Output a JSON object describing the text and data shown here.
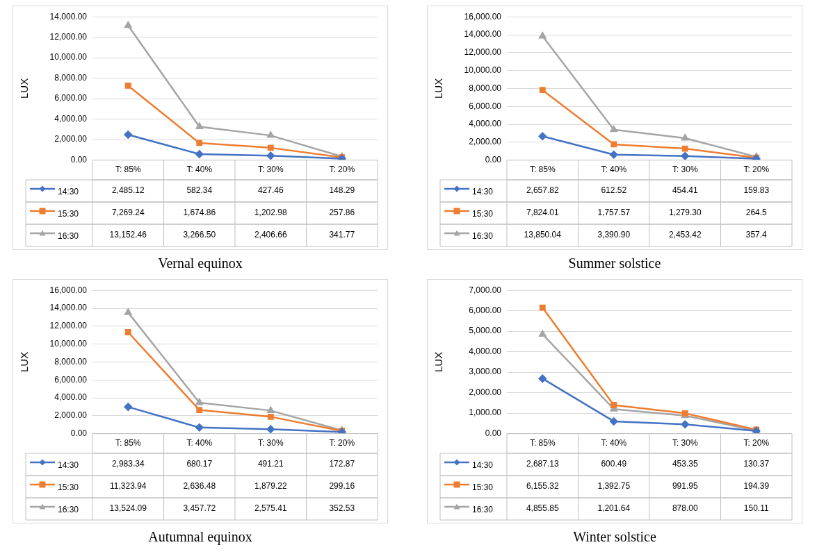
{
  "chart_data": [
    {
      "type": "line",
      "legend": "bottom left",
      "title": "Vernal equinox",
      "ylabel": "LUX",
      "categories": [
        "T: 85%",
        "T: 40%",
        "T: 30%",
        "T: 20%"
      ],
      "grid": "y",
      "ylim": [
        0,
        14000
      ],
      "yticks": [
        {
          "value": 0,
          "label": "0.00"
        },
        {
          "value": 2000,
          "label": "2,000.00"
        },
        {
          "value": 4000,
          "label": "4,000.00"
        },
        {
          "value": 6000,
          "label": "6,000.00"
        },
        {
          "value": 8000,
          "label": "8,000.00"
        },
        {
          "value": 10000,
          "label": "10,000.00"
        },
        {
          "value": 12000,
          "label": "12,000.00"
        },
        {
          "value": 14000,
          "label": "14,000.00"
        }
      ],
      "series": [
        {
          "name": "14:30",
          "color": "#4472c4",
          "marker": "diamond",
          "values": [
            2485.12,
            582.34,
            427.46,
            148.29
          ],
          "value_labels": [
            "2,485.12",
            "582.34",
            "427.46",
            "148.29"
          ]
        },
        {
          "name": "15:30",
          "color": "#ed7d31",
          "marker": "square",
          "values": [
            7269.24,
            1674.86,
            1202.98,
            257.86
          ],
          "value_labels": [
            "7,269.24",
            "1,674.86",
            "1,202.98",
            "257.86"
          ]
        },
        {
          "name": "16:30",
          "color": "#a5a5a5",
          "marker": "triangle",
          "values": [
            13152.46,
            3266.5,
            2406.66,
            341.77
          ],
          "value_labels": [
            "13,152.46",
            "3,266.50",
            "2,406.66",
            "341.77"
          ]
        }
      ]
    },
    {
      "type": "line",
      "legend": "bottom left",
      "title": "Summer solstice",
      "ylabel": "LUX",
      "categories": [
        "T: 85%",
        "T: 40%",
        "T: 30%",
        "T: 20%"
      ],
      "grid": "y",
      "ylim": [
        0,
        16000
      ],
      "yticks": [
        {
          "value": 0,
          "label": "0.00"
        },
        {
          "value": 2000,
          "label": "2,000.00"
        },
        {
          "value": 4000,
          "label": "4,000.00"
        },
        {
          "value": 6000,
          "label": "6,000.00"
        },
        {
          "value": 8000,
          "label": "8,000.00"
        },
        {
          "value": 10000,
          "label": "10,000.00"
        },
        {
          "value": 12000,
          "label": "12,000.00"
        },
        {
          "value": 14000,
          "label": "14,000.00"
        },
        {
          "value": 16000,
          "label": "16,000.00"
        }
      ],
      "series": [
        {
          "name": "14:30",
          "color": "#4472c4",
          "marker": "diamond",
          "values": [
            2657.82,
            612.52,
            454.41,
            159.83
          ],
          "value_labels": [
            "2,657.82",
            "612.52",
            "454.41",
            "159.83"
          ]
        },
        {
          "name": "15:30",
          "color": "#ed7d31",
          "marker": "square",
          "values": [
            7824.01,
            1757.57,
            1279.3,
            264.5
          ],
          "value_labels": [
            "7,824.01",
            "1,757.57",
            "1,279.30",
            "264.5"
          ]
        },
        {
          "name": "16:30",
          "color": "#a5a5a5",
          "marker": "triangle",
          "values": [
            13850.04,
            3390.9,
            2453.42,
            357.4
          ],
          "value_labels": [
            "13,850.04",
            "3,390.90",
            "2,453.42",
            "357.4"
          ]
        }
      ]
    },
    {
      "type": "line",
      "legend": "bottom left",
      "title": "Autumnal equinox",
      "ylabel": "LUX",
      "categories": [
        "T: 85%",
        "T: 40%",
        "T: 30%",
        "T: 20%"
      ],
      "grid": "y",
      "ylim": [
        0,
        16000
      ],
      "yticks": [
        {
          "value": 0,
          "label": "0.00"
        },
        {
          "value": 2000,
          "label": "2,000.00"
        },
        {
          "value": 4000,
          "label": "4,000.00"
        },
        {
          "value": 6000,
          "label": "6,000.00"
        },
        {
          "value": 8000,
          "label": "8,000.00"
        },
        {
          "value": 10000,
          "label": "10,000.00"
        },
        {
          "value": 12000,
          "label": "12,000.00"
        },
        {
          "value": 14000,
          "label": "14,000.00"
        },
        {
          "value": 16000,
          "label": "16,000.00"
        }
      ],
      "series": [
        {
          "name": "14:30",
          "color": "#4472c4",
          "marker": "diamond",
          "values": [
            2983.34,
            680.17,
            491.21,
            172.87
          ],
          "value_labels": [
            "2,983.34",
            "680.17",
            "491.21",
            "172.87"
          ]
        },
        {
          "name": "15:30",
          "color": "#ed7d31",
          "marker": "square",
          "values": [
            11323.94,
            2636.48,
            1879.22,
            299.16
          ],
          "value_labels": [
            "11,323.94",
            "2,636.48",
            "1,879.22",
            "299.16"
          ]
        },
        {
          "name": "16:30",
          "color": "#a5a5a5",
          "marker": "triangle",
          "values": [
            13524.09,
            3457.72,
            2575.41,
            352.53
          ],
          "value_labels": [
            "13,524.09",
            "3,457.72",
            "2,575.41",
            "352.53"
          ]
        }
      ]
    },
    {
      "type": "line",
      "legend": "bottom left",
      "title": "Winter solstice",
      "ylabel": "LUX",
      "categories": [
        "T: 85%",
        "T: 40%",
        "T: 30%",
        "T: 20%"
      ],
      "grid": "y",
      "ylim": [
        0,
        7000
      ],
      "yticks": [
        {
          "value": 0,
          "label": "0.00"
        },
        {
          "value": 1000,
          "label": "1,000.00"
        },
        {
          "value": 2000,
          "label": "2,000.00"
        },
        {
          "value": 3000,
          "label": "3,000.00"
        },
        {
          "value": 4000,
          "label": "4,000.00"
        },
        {
          "value": 5000,
          "label": "5,000.00"
        },
        {
          "value": 6000,
          "label": "6,000.00"
        },
        {
          "value": 7000,
          "label": "7,000.00"
        }
      ],
      "series": [
        {
          "name": "14:30",
          "color": "#4472c4",
          "marker": "diamond",
          "values": [
            2687.13,
            600.49,
            453.35,
            130.37
          ],
          "value_labels": [
            "2,687.13",
            "600.49",
            "453.35",
            "130.37"
          ]
        },
        {
          "name": "15:30",
          "color": "#ed7d31",
          "marker": "square",
          "values": [
            6155.32,
            1392.75,
            991.95,
            194.39
          ],
          "value_labels": [
            "6,155.32",
            "1,392.75",
            "991.95",
            "194.39"
          ]
        },
        {
          "name": "16:30",
          "color": "#a5a5a5",
          "marker": "triangle",
          "values": [
            4855.85,
            1201.64,
            878.0,
            150.11
          ],
          "value_labels": [
            "4,855.85",
            "1,201.64",
            "878.00",
            "150.11"
          ]
        }
      ]
    }
  ]
}
